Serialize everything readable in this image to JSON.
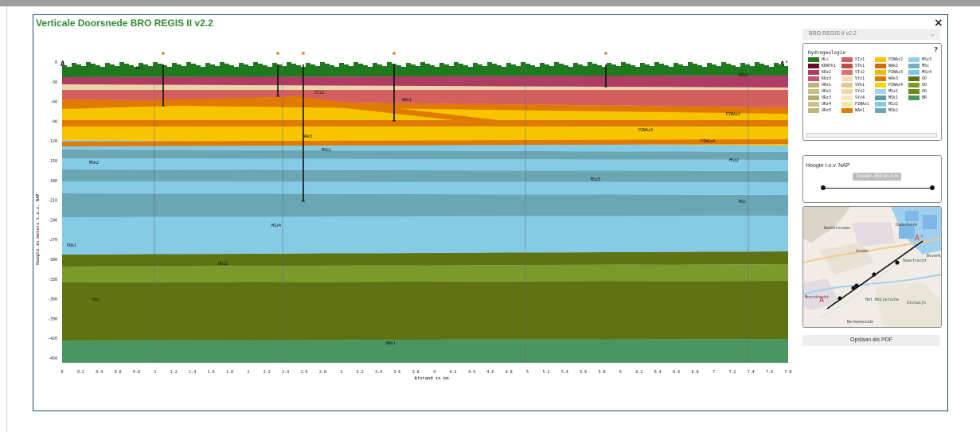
{
  "window": {
    "title": "Verticale Doorsnede BRO REGIS II v2.2",
    "close_label": "×"
  },
  "profile": {
    "start_label": "A",
    "end_label": "A'",
    "ylabel": "Hoogte in meters t.o.v. NAP",
    "xlabel": "Afstand in km",
    "y_ticks": [
      "0",
      "-30",
      "-60",
      "-90",
      "-120",
      "-150",
      "-180",
      "-210",
      "-240",
      "-270",
      "-300",
      "-330",
      "-360",
      "-390",
      "-420",
      "-450"
    ],
    "x_ticks": [
      "0",
      "0.2",
      "0.4",
      "0.6",
      "0.8",
      "1",
      "1.2",
      "1.4",
      "1.6",
      "1.8",
      "2",
      "2.2",
      "2.4",
      "2.6",
      "2.8",
      "3",
      "3.2",
      "3.4",
      "3.6",
      "3.8",
      "4",
      "4.2",
      "4.4",
      "4.6",
      "4.8",
      "5",
      "5.2",
      "5.4",
      "5.6",
      "5.8",
      "6",
      "6.2",
      "6.4",
      "6.6",
      "6.8",
      "7",
      "7.2",
      "7.4",
      "7.6",
      "7.8"
    ],
    "layer_labels": [
      {
        "text": "HLc"
      },
      {
        "text": "KRz3"
      },
      {
        "text": "STz2"
      },
      {
        "text": "WAk1"
      },
      {
        "text": "PZWAz2"
      },
      {
        "text": "PZWAz3"
      },
      {
        "text": "PZWAz4"
      },
      {
        "text": "WAk3"
      },
      {
        "text": "MSk1"
      },
      {
        "text": "MSz2"
      },
      {
        "text": "MSk2"
      },
      {
        "text": "MSz3"
      },
      {
        "text": "MSc"
      },
      {
        "text": "MSz4"
      },
      {
        "text": "OOk1"
      },
      {
        "text": "OOz2"
      },
      {
        "text": "OOc"
      },
      {
        "text": "BRk1"
      }
    ],
    "layer_colors": {
      "HLc": "#1f7a1f",
      "KR": "#b03b63",
      "ST": "#d45f5f",
      "light": "#e8d5a8",
      "WA": "#e07a00",
      "PZWA": "#f8c400",
      "MSk": "#6aa6b3",
      "MSz": "#84cbe6",
      "OOk": "#5f7312",
      "OOz": "#7c9a2c",
      "OOc": "#5f7312",
      "BR": "#4a9660"
    }
  },
  "sidebar": {
    "model_select": "BRO REGIS II v2.2",
    "legend": {
      "title": "Hydrogeologie",
      "help": "?",
      "items": [
        {
          "label": "HLc",
          "color": "#1f7a1f"
        },
        {
          "label": "KRWYk1",
          "color": "#6b0f24"
        },
        {
          "label": "KRz2",
          "color": "#b03b63"
        },
        {
          "label": "KRz3",
          "color": "#c5507a"
        },
        {
          "label": "URz1",
          "color": "#bdb579"
        },
        {
          "label": "URz2",
          "color": "#c7bf85"
        },
        {
          "label": "URz3",
          "color": "#b5ad70"
        },
        {
          "label": "URz4",
          "color": "#c9c28d"
        },
        {
          "label": "URz5",
          "color": "#bfb77e"
        },
        {
          "label": "STz1",
          "color": "#d45f5f"
        },
        {
          "label": "STk1",
          "color": "#c24c4c"
        },
        {
          "label": "STz2",
          "color": "#e07070"
        },
        {
          "label": "SYz1",
          "color": "#f3dcb0"
        },
        {
          "label": "SYk1",
          "color": "#e6c690"
        },
        {
          "label": "SYz2",
          "color": "#f0d8a8"
        },
        {
          "label": "SYz4",
          "color": "#f7e6c0"
        },
        {
          "label": "PZWAz1",
          "color": "#f8e5a0"
        },
        {
          "label": "WAk1",
          "color": "#e07a00"
        },
        {
          "label": "PZWAz2",
          "color": "#f8c400"
        },
        {
          "label": "WAk2",
          "color": "#d06a00"
        },
        {
          "label": "PZWAz3",
          "color": "#f5b800"
        },
        {
          "label": "WAk3",
          "color": "#d87800"
        },
        {
          "label": "PZWAz4",
          "color": "#fcd200"
        },
        {
          "label": "MSz1",
          "color": "#9ed6ea"
        },
        {
          "label": "MSk1",
          "color": "#5f9aa6"
        },
        {
          "label": "MSz2",
          "color": "#84cbe6"
        },
        {
          "label": "MSk2",
          "color": "#6aa6b3"
        },
        {
          "label": "MSz3",
          "color": "#8fcfe8"
        },
        {
          "label": "MSc",
          "color": "#76b0bd"
        },
        {
          "label": "MSz4",
          "color": "#7cc6e4"
        },
        {
          "label": "OO",
          "color": "#5f7312"
        },
        {
          "label": "OO",
          "color": "#7c9a2c"
        },
        {
          "label": "OO",
          "color": "#6b8a1e"
        },
        {
          "label": "BR",
          "color": "#4a9660"
        }
      ]
    },
    "height": {
      "title": "Hoogte t.o.v. NAP",
      "tooltip": "Tussen -453 en 3 m"
    },
    "map": {
      "labels": [
        "Gouda",
        "Ouderkerk",
        "Moordrecht",
        "Haastrecht",
        "Het Beijersche",
        "Stolwijk",
        "Waddinxveen",
        "Berkenwoude",
        "Bovenk.",
        "A",
        "A'"
      ]
    },
    "pdf_button": "Opslaan als PDF"
  }
}
